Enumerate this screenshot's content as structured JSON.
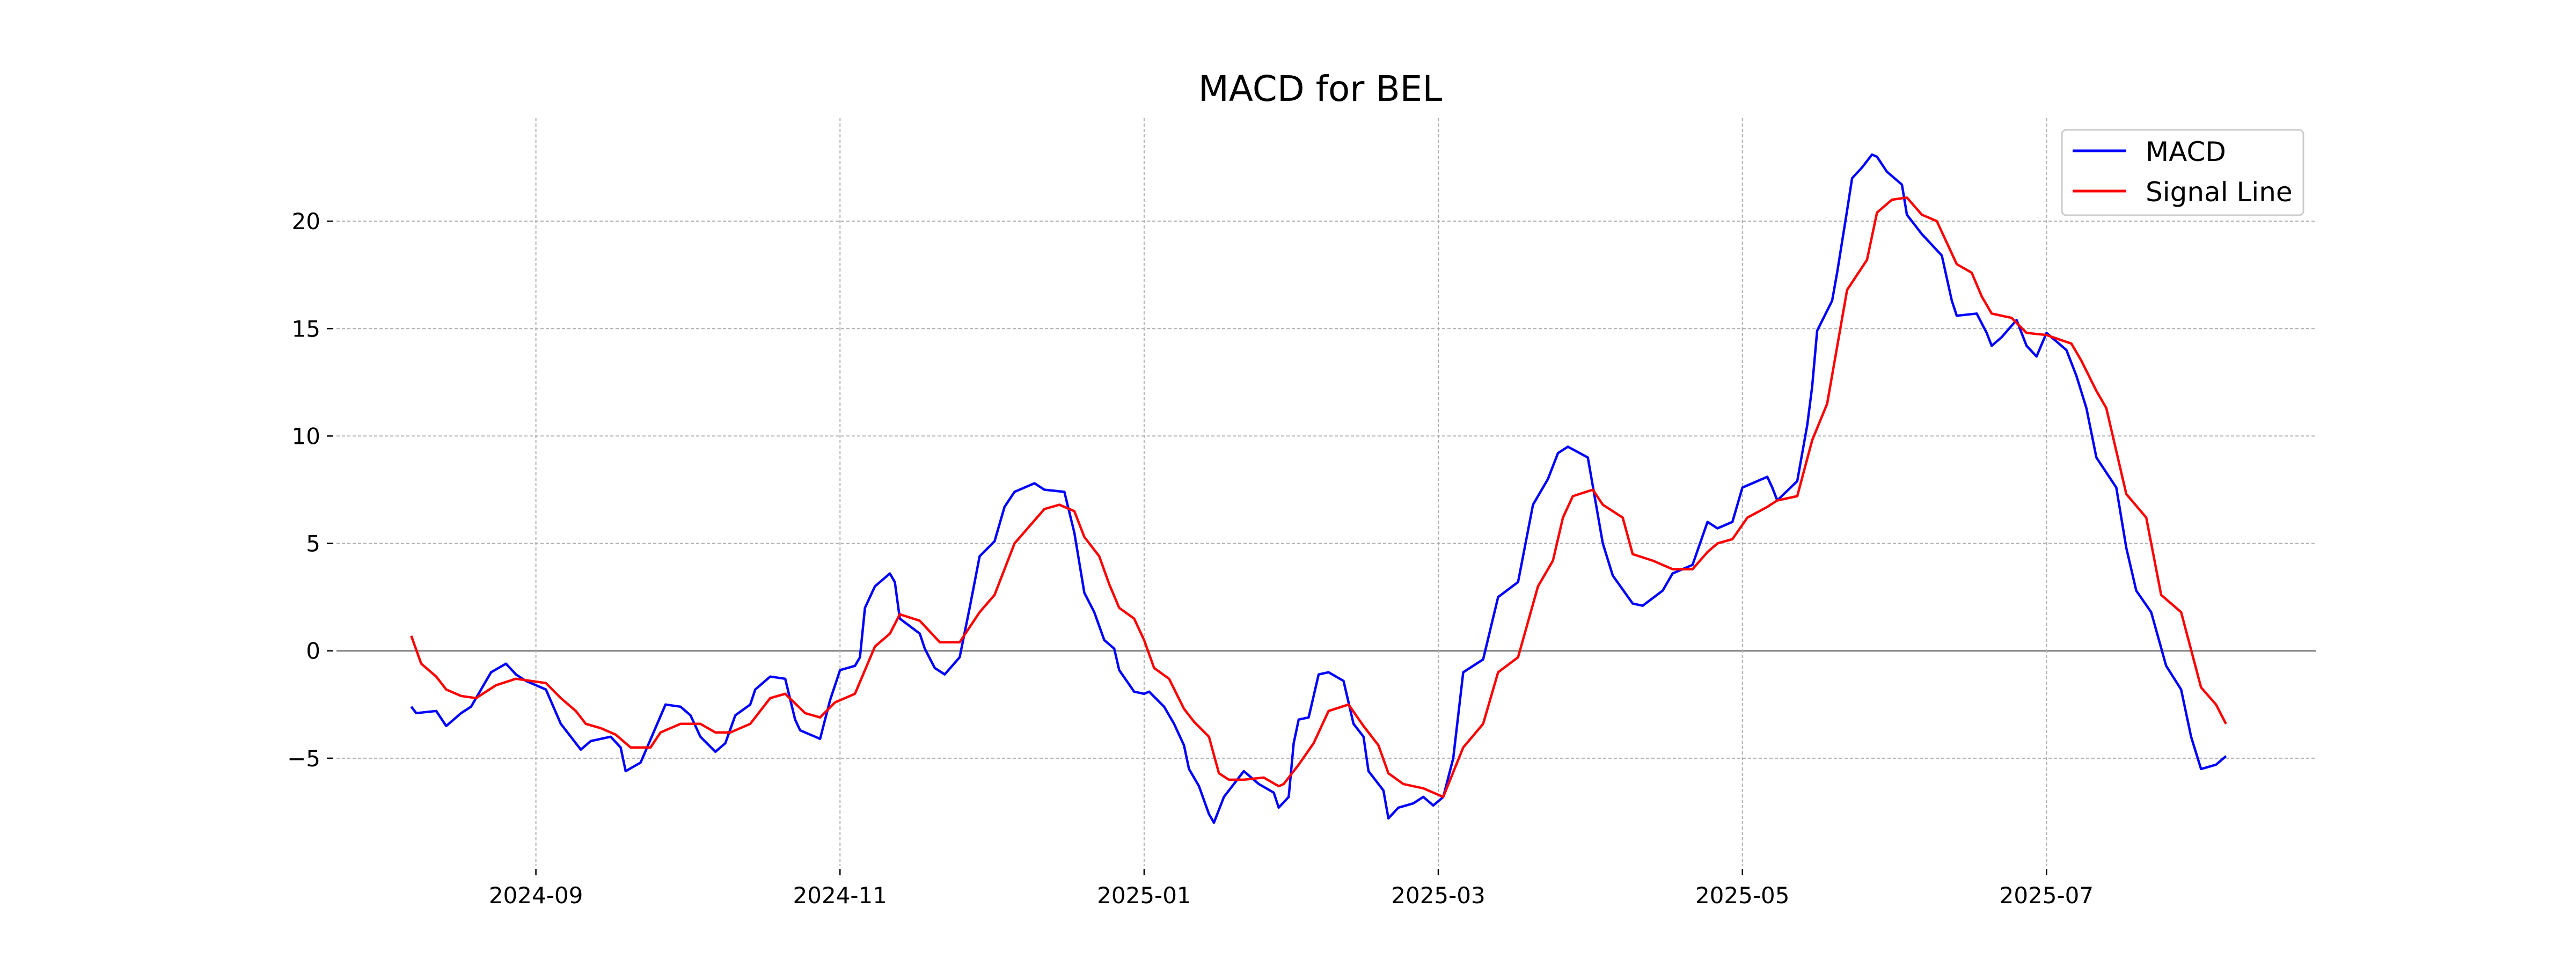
{
  "chart_data": {
    "type": "line",
    "title": "MACD for BEL",
    "xlabel": "",
    "ylabel": "",
    "x_unit": "days since 2024-08-07",
    "xlim": [
      -15,
      382
    ],
    "ylim": [
      -10,
      24.8
    ],
    "grid": true,
    "legend_position": "top-right",
    "x_ticks": [
      {
        "day": 25,
        "label": "2024-09"
      },
      {
        "day": 86,
        "label": "2024-11"
      },
      {
        "day": 147,
        "label": "2025-01"
      },
      {
        "day": 206,
        "label": "2025-03"
      },
      {
        "day": 267,
        "label": "2025-05"
      },
      {
        "day": 328,
        "label": "2025-07"
      }
    ],
    "y_ticks": [
      {
        "value": -5,
        "label": "−5"
      },
      {
        "value": 0,
        "label": "0"
      },
      {
        "value": 5,
        "label": "5"
      },
      {
        "value": 10,
        "label": "10"
      },
      {
        "value": 15,
        "label": "15"
      },
      {
        "value": 20,
        "label": "20"
      }
    ],
    "series": [
      {
        "name": "MACD",
        "color": "#0000ff",
        "points": [
          [
            0,
            -2.6
          ],
          [
            1,
            -2.9
          ],
          [
            5,
            -2.8
          ],
          [
            7,
            -3.5
          ],
          [
            10,
            -2.9
          ],
          [
            12,
            -2.6
          ],
          [
            16,
            -1.0
          ],
          [
            19,
            -0.6
          ],
          [
            21,
            -1.1
          ],
          [
            23,
            -1.4
          ],
          [
            27,
            -1.8
          ],
          [
            30,
            -3.4
          ],
          [
            34,
            -4.6
          ],
          [
            36,
            -4.2
          ],
          [
            40,
            -4.0
          ],
          [
            42,
            -4.5
          ],
          [
            43,
            -5.6
          ],
          [
            46,
            -5.2
          ],
          [
            51,
            -2.5
          ],
          [
            54,
            -2.6
          ],
          [
            56,
            -3.0
          ],
          [
            58,
            -4.0
          ],
          [
            61,
            -4.7
          ],
          [
            63,
            -4.3
          ],
          [
            65,
            -3.0
          ],
          [
            68,
            -2.5
          ],
          [
            69,
            -1.8
          ],
          [
            72,
            -1.2
          ],
          [
            75,
            -1.3
          ],
          [
            77,
            -3.2
          ],
          [
            78,
            -3.7
          ],
          [
            82,
            -4.1
          ],
          [
            84,
            -2.3
          ],
          [
            86,
            -0.9
          ],
          [
            89,
            -0.7
          ],
          [
            90,
            -0.3
          ],
          [
            91,
            2.0
          ],
          [
            93,
            3.0
          ],
          [
            96,
            3.6
          ],
          [
            97,
            3.2
          ],
          [
            98,
            1.5
          ],
          [
            102,
            0.8
          ],
          [
            103,
            0.1
          ],
          [
            105,
            -0.8
          ],
          [
            107,
            -1.1
          ],
          [
            110,
            -0.3
          ],
          [
            112,
            2.0
          ],
          [
            114,
            4.4
          ],
          [
            117,
            5.1
          ],
          [
            119,
            6.7
          ],
          [
            121,
            7.4
          ],
          [
            125,
            7.8
          ],
          [
            127,
            7.5
          ],
          [
            131,
            7.4
          ],
          [
            133,
            5.5
          ],
          [
            135,
            2.7
          ],
          [
            137,
            1.8
          ],
          [
            139,
            0.5
          ],
          [
            141,
            0.1
          ],
          [
            142,
            -0.9
          ],
          [
            145,
            -1.9
          ],
          [
            147,
            -2.0
          ],
          [
            148,
            -1.9
          ],
          [
            151,
            -2.6
          ],
          [
            153,
            -3.4
          ],
          [
            155,
            -4.4
          ],
          [
            156,
            -5.5
          ],
          [
            158,
            -6.3
          ],
          [
            160,
            -7.6
          ],
          [
            161,
            -8.0
          ],
          [
            163,
            -6.8
          ],
          [
            167,
            -5.6
          ],
          [
            168,
            -5.8
          ],
          [
            170,
            -6.2
          ],
          [
            173,
            -6.6
          ],
          [
            174,
            -7.3
          ],
          [
            176,
            -6.8
          ],
          [
            177,
            -4.3
          ],
          [
            178,
            -3.2
          ],
          [
            180,
            -3.1
          ],
          [
            182,
            -1.1
          ],
          [
            184,
            -1.0
          ],
          [
            187,
            -1.4
          ],
          [
            189,
            -3.4
          ],
          [
            191,
            -4.0
          ],
          [
            192,
            -5.6
          ],
          [
            195,
            -6.5
          ],
          [
            196,
            -7.8
          ],
          [
            198,
            -7.3
          ],
          [
            201,
            -7.1
          ],
          [
            203,
            -6.8
          ],
          [
            205,
            -7.2
          ],
          [
            207,
            -6.8
          ],
          [
            209,
            -5.0
          ],
          [
            211,
            -1.0
          ],
          [
            215,
            -0.4
          ],
          [
            218,
            2.5
          ],
          [
            222,
            3.2
          ],
          [
            225,
            6.8
          ],
          [
            228,
            8.0
          ],
          [
            230,
            9.2
          ],
          [
            232,
            9.5
          ],
          [
            236,
            9.0
          ],
          [
            239,
            5.0
          ],
          [
            241,
            3.5
          ],
          [
            245,
            2.2
          ],
          [
            247,
            2.1
          ],
          [
            251,
            2.8
          ],
          [
            253,
            3.6
          ],
          [
            257,
            4.0
          ],
          [
            260,
            6.0
          ],
          [
            262,
            5.7
          ],
          [
            265,
            6.0
          ],
          [
            267,
            7.6
          ],
          [
            269,
            7.8
          ],
          [
            272,
            8.1
          ],
          [
            273,
            7.6
          ],
          [
            274,
            7.0
          ],
          [
            278,
            7.9
          ],
          [
            280,
            10.5
          ],
          [
            281,
            12.3
          ],
          [
            282,
            14.9
          ],
          [
            285,
            16.3
          ],
          [
            286,
            17.6
          ],
          [
            288,
            20.5
          ],
          [
            289,
            22.0
          ],
          [
            291,
            22.5
          ],
          [
            293,
            23.1
          ],
          [
            294,
            23.0
          ],
          [
            296,
            22.3
          ],
          [
            299,
            21.7
          ],
          [
            300,
            20.3
          ],
          [
            303,
            19.4
          ],
          [
            307,
            18.4
          ],
          [
            309,
            16.3
          ],
          [
            310,
            15.6
          ],
          [
            314,
            15.7
          ],
          [
            316,
            14.8
          ],
          [
            317,
            14.2
          ],
          [
            319,
            14.6
          ],
          [
            322,
            15.4
          ],
          [
            324,
            14.2
          ],
          [
            326,
            13.7
          ],
          [
            328,
            14.8
          ],
          [
            332,
            14.0
          ],
          [
            334,
            12.8
          ],
          [
            336,
            11.3
          ],
          [
            338,
            9.0
          ],
          [
            342,
            7.6
          ],
          [
            344,
            4.8
          ],
          [
            346,
            2.8
          ],
          [
            349,
            1.8
          ],
          [
            352,
            -0.7
          ],
          [
            355,
            -1.8
          ],
          [
            357,
            -4.0
          ],
          [
            359,
            -5.5
          ],
          [
            362,
            -5.3
          ],
          [
            364,
            -4.9
          ]
        ]
      },
      {
        "name": "Signal Line",
        "color": "#ff0000",
        "points": [
          [
            0,
            0.7
          ],
          [
            2,
            -0.6
          ],
          [
            5,
            -1.2
          ],
          [
            7,
            -1.8
          ],
          [
            10,
            -2.1
          ],
          [
            13,
            -2.2
          ],
          [
            17,
            -1.6
          ],
          [
            21,
            -1.3
          ],
          [
            27,
            -1.5
          ],
          [
            30,
            -2.2
          ],
          [
            33,
            -2.8
          ],
          [
            35,
            -3.4
          ],
          [
            38,
            -3.6
          ],
          [
            41,
            -3.9
          ],
          [
            44,
            -4.5
          ],
          [
            48,
            -4.5
          ],
          [
            50,
            -3.8
          ],
          [
            54,
            -3.4
          ],
          [
            58,
            -3.4
          ],
          [
            61,
            -3.8
          ],
          [
            64,
            -3.8
          ],
          [
            68,
            -3.4
          ],
          [
            72,
            -2.2
          ],
          [
            75,
            -2.0
          ],
          [
            79,
            -2.9
          ],
          [
            82,
            -3.1
          ],
          [
            85,
            -2.4
          ],
          [
            89,
            -2.0
          ],
          [
            93,
            0.2
          ],
          [
            96,
            0.8
          ],
          [
            98,
            1.7
          ],
          [
            102,
            1.4
          ],
          [
            106,
            0.4
          ],
          [
            110,
            0.4
          ],
          [
            114,
            1.8
          ],
          [
            117,
            2.6
          ],
          [
            121,
            5.0
          ],
          [
            124,
            5.8
          ],
          [
            127,
            6.6
          ],
          [
            130,
            6.8
          ],
          [
            133,
            6.5
          ],
          [
            135,
            5.3
          ],
          [
            138,
            4.4
          ],
          [
            140,
            3.1
          ],
          [
            142,
            2.0
          ],
          [
            145,
            1.5
          ],
          [
            147,
            0.5
          ],
          [
            149,
            -0.8
          ],
          [
            152,
            -1.3
          ],
          [
            155,
            -2.7
          ],
          [
            157,
            -3.3
          ],
          [
            160,
            -4.0
          ],
          [
            162,
            -5.7
          ],
          [
            164,
            -6.0
          ],
          [
            167,
            -6.0
          ],
          [
            171,
            -5.9
          ],
          [
            174,
            -6.3
          ],
          [
            175,
            -6.2
          ],
          [
            178,
            -5.3
          ],
          [
            181,
            -4.3
          ],
          [
            184,
            -2.8
          ],
          [
            188,
            -2.5
          ],
          [
            191,
            -3.5
          ],
          [
            194,
            -4.4
          ],
          [
            196,
            -5.7
          ],
          [
            199,
            -6.2
          ],
          [
            203,
            -6.4
          ],
          [
            207,
            -6.8
          ],
          [
            211,
            -4.5
          ],
          [
            215,
            -3.4
          ],
          [
            218,
            -1.0
          ],
          [
            222,
            -0.3
          ],
          [
            226,
            3.0
          ],
          [
            229,
            4.2
          ],
          [
            231,
            6.2
          ],
          [
            233,
            7.2
          ],
          [
            237,
            7.5
          ],
          [
            239,
            6.8
          ],
          [
            243,
            6.2
          ],
          [
            245,
            4.5
          ],
          [
            249,
            4.2
          ],
          [
            253,
            3.8
          ],
          [
            257,
            3.8
          ],
          [
            260,
            4.6
          ],
          [
            262,
            5.0
          ],
          [
            265,
            5.2
          ],
          [
            268,
            6.2
          ],
          [
            272,
            6.7
          ],
          [
            274,
            7.0
          ],
          [
            278,
            7.2
          ],
          [
            281,
            9.8
          ],
          [
            284,
            11.5
          ],
          [
            288,
            16.8
          ],
          [
            292,
            18.2
          ],
          [
            294,
            20.4
          ],
          [
            297,
            21.0
          ],
          [
            300,
            21.1
          ],
          [
            303,
            20.3
          ],
          [
            306,
            20.0
          ],
          [
            310,
            18.0
          ],
          [
            313,
            17.6
          ],
          [
            315,
            16.5
          ],
          [
            317,
            15.7
          ],
          [
            321,
            15.5
          ],
          [
            324,
            14.8
          ],
          [
            328,
            14.7
          ],
          [
            333,
            14.3
          ],
          [
            335,
            13.5
          ],
          [
            338,
            12.1
          ],
          [
            340,
            11.3
          ],
          [
            344,
            7.3
          ],
          [
            348,
            6.2
          ],
          [
            351,
            2.6
          ],
          [
            355,
            1.8
          ],
          [
            359,
            -1.7
          ],
          [
            362,
            -2.5
          ],
          [
            364,
            -3.4
          ]
        ]
      }
    ]
  }
}
